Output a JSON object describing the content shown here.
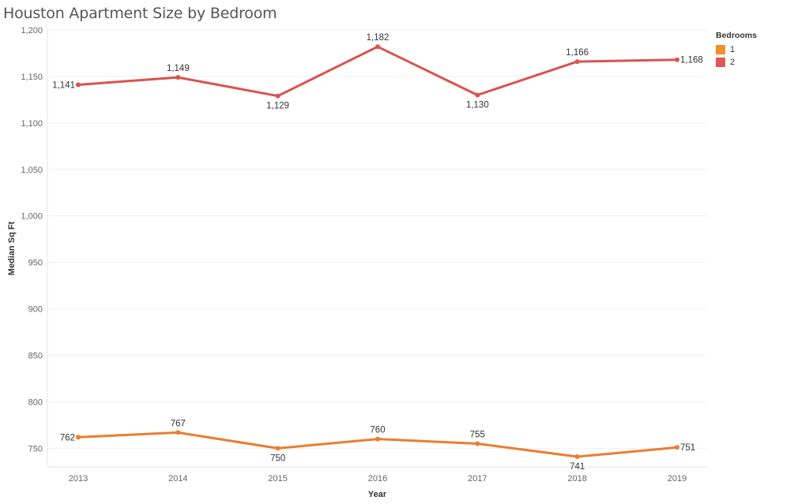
{
  "chart_data": {
    "type": "line",
    "title": "Houston Apartment Size by Bedroom",
    "xlabel": "Year",
    "ylabel": "Median Sq Ft",
    "categories": [
      "2013",
      "2014",
      "2015",
      "2016",
      "2017",
      "2018",
      "2019"
    ],
    "ylim": [
      730,
      1200
    ],
    "yticks": [
      750,
      800,
      850,
      900,
      950,
      1000,
      1050,
      1100,
      1150,
      1200
    ],
    "ytick_labels": [
      "750",
      "800",
      "850",
      "900",
      "950",
      "1,000",
      "1,050",
      "1,100",
      "1,150",
      "1,200"
    ],
    "legend_title": "Bedrooms",
    "series": [
      {
        "name": "1",
        "color": "#F28E2B",
        "line_color": "#EB7D2F",
        "values": [
          762,
          767,
          750,
          760,
          755,
          741,
          751
        ],
        "labels": [
          "762",
          "767",
          "750",
          "760",
          "755",
          "741",
          "751"
        ],
        "label_pos": [
          "left",
          "above",
          "below",
          "above",
          "above",
          "below",
          "right"
        ]
      },
      {
        "name": "2",
        "color": "#E15759",
        "line_color": "#D9534F",
        "values": [
          1141,
          1149,
          1129,
          1182,
          1130,
          1166,
          1168
        ],
        "labels": [
          "1,141",
          "1,149",
          "1,129",
          "1,182",
          "1,130",
          "1,166",
          "1,168"
        ],
        "label_pos": [
          "left",
          "above",
          "below",
          "above",
          "below",
          "above",
          "right"
        ]
      }
    ]
  }
}
